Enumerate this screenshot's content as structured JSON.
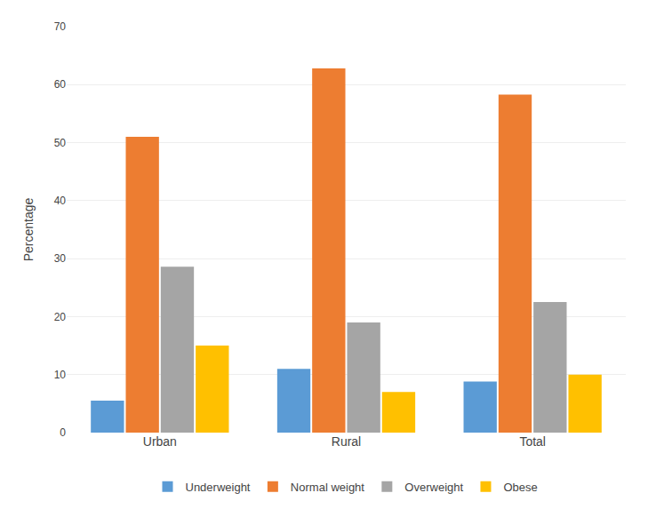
{
  "chart_data": {
    "type": "bar",
    "categories": [
      "Urban",
      "Rural",
      "Total"
    ],
    "series": [
      {
        "name": "Underweight",
        "values": [
          5.5,
          11.0,
          8.8
        ],
        "color": "#5b9bd5"
      },
      {
        "name": "Normal weight",
        "values": [
          51.0,
          62.8,
          58.3
        ],
        "color": "#ed7d31"
      },
      {
        "name": "Overweight",
        "values": [
          28.6,
          19.0,
          22.5
        ],
        "color": "#a5a5a5"
      },
      {
        "name": "Obese",
        "values": [
          15.0,
          7.0,
          10.0
        ],
        "color": "#ffc000"
      }
    ],
    "ylabel": "Percentage",
    "ylim": [
      0,
      70
    ],
    "yticks": [
      0,
      10,
      20,
      30,
      40,
      50,
      60,
      70
    ],
    "grid": true,
    "legend": "bottom"
  }
}
